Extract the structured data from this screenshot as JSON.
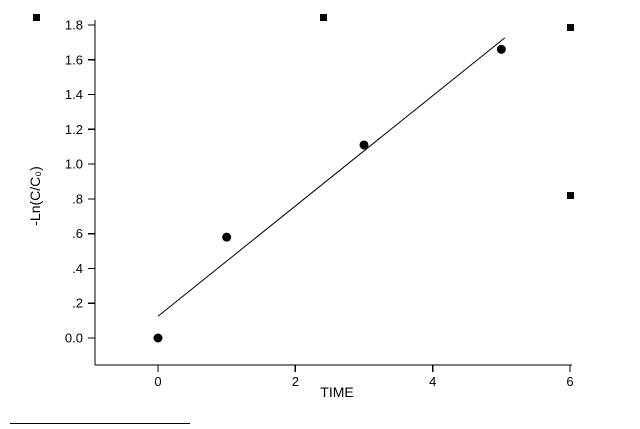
{
  "chart_data": {
    "type": "scatter",
    "title": "",
    "xlabel": "TIME",
    "ylabel": "-Ln(C/C₀)",
    "grid": false,
    "legend": "none",
    "xlim": [
      -0.92,
      6.03
    ],
    "ylim": [
      -0.16,
      1.8
    ],
    "marker": "filled-circle",
    "colors": {
      "axis": "#000000",
      "marker": "#000000",
      "line": "#000000",
      "background": "#ffffff"
    },
    "points": [
      {
        "x": 0,
        "y": 0.0
      },
      {
        "x": 1,
        "y": 0.58
      },
      {
        "x": 3,
        "y": 1.11
      },
      {
        "x": 5,
        "y": 1.66
      }
    ],
    "fit_line": {
      "slope": 0.317,
      "intercept": 0.125,
      "x_start": 0,
      "x_end": 5.05
    },
    "x_ticks": [
      {
        "value": 0,
        "label": "0"
      },
      {
        "value": 2,
        "label": "2"
      },
      {
        "value": 4,
        "label": "4"
      },
      {
        "value": 6,
        "label": "6"
      }
    ],
    "y_ticks": [
      {
        "value": 0.0,
        "label": "0.0"
      },
      {
        "value": 0.2,
        "label": ".2"
      },
      {
        "value": 0.4,
        "label": ".4"
      },
      {
        "value": 0.6,
        "label": ".6"
      },
      {
        "value": 0.8,
        "label": ".8"
      },
      {
        "value": 1.0,
        "label": "1.0"
      },
      {
        "value": 1.2,
        "label": "1.2"
      },
      {
        "value": 1.4,
        "label": "1.4"
      },
      {
        "value": 1.6,
        "label": "1.6"
      },
      {
        "value": 1.8,
        "label": "1.8"
      }
    ]
  }
}
